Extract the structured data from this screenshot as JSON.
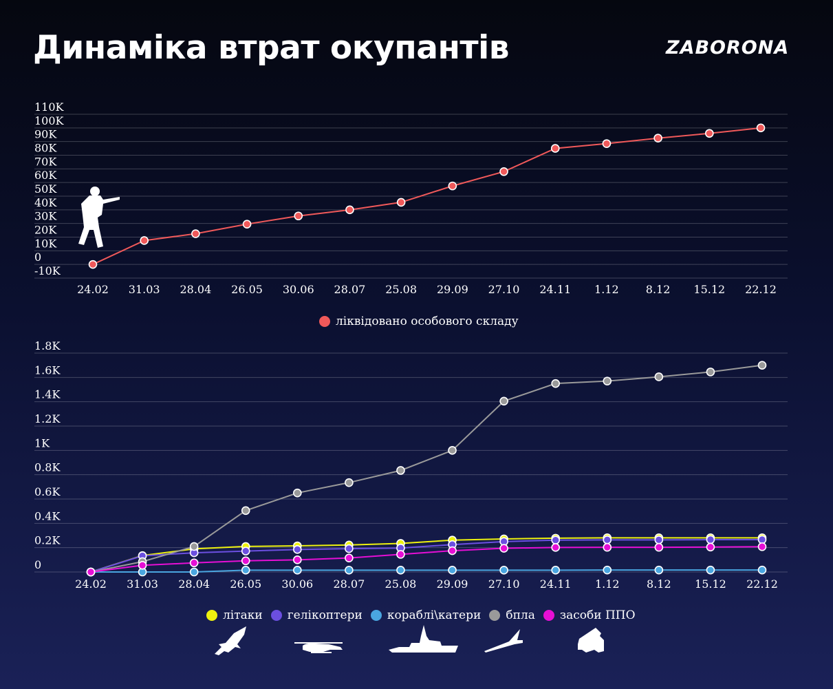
{
  "header": {
    "title": "Динаміка втрат окупантів",
    "brand": "ZABORONA"
  },
  "chart_data": [
    {
      "type": "line",
      "categories": [
        "24.02",
        "31.03",
        "28.04",
        "26.05",
        "30.06",
        "28.07",
        "25.08",
        "29.09",
        "27.10",
        "24.11",
        "1.12",
        "8.12",
        "15.12",
        "22.12"
      ],
      "y_ticks": [
        "-10K",
        "0",
        "10K",
        "20K",
        "30K",
        "40K",
        "50K",
        "60K",
        "70K",
        "80K",
        "90K",
        "100K",
        "110K"
      ],
      "ylim": [
        -10000,
        110000
      ],
      "grid": true,
      "legend_position": "bottom-center",
      "series": [
        {
          "name": "ліквідовано особового складу",
          "color": "#f0595a",
          "values": [
            0,
            17500,
            22500,
            29500,
            35500,
            40000,
            45500,
            57500,
            68000,
            85000,
            88500,
            92500,
            96000,
            100000
          ]
        }
      ],
      "icons": [
        "soldier-icon"
      ]
    },
    {
      "type": "line",
      "categories": [
        "24.02",
        "31.03",
        "28.04",
        "26.05",
        "30.06",
        "28.07",
        "25.08",
        "29.09",
        "27.10",
        "24.11",
        "1.12",
        "8.12",
        "15.12",
        "22.12"
      ],
      "y_ticks": [
        "0",
        "0.2K",
        "0.4K",
        "0.6K",
        "0.8K",
        "1K",
        "1.2K",
        "1.4K",
        "1.6K",
        "1.8K"
      ],
      "ylim": [
        0,
        1800
      ],
      "grid": true,
      "legend_position": "bottom-center",
      "series": [
        {
          "name": "літаки",
          "color": "#eef20f",
          "values": [
            0,
            135,
            190,
            210,
            215,
            222,
            235,
            262,
            272,
            278,
            281,
            281,
            281,
            281
          ]
        },
        {
          "name": "гелікоптери",
          "color": "#6b4fe0",
          "values": [
            0,
            133,
            158,
            172,
            185,
            192,
            197,
            225,
            250,
            262,
            264,
            264,
            266,
            266
          ]
        },
        {
          "name": "кораблі\\катери",
          "color": "#4aa6e0",
          "values": [
            0,
            0,
            0,
            15,
            15,
            15,
            15,
            15,
            15,
            15,
            16,
            16,
            16,
            16
          ]
        },
        {
          "name": "бпла",
          "color": "#9a9a9a",
          "values": [
            0,
            85,
            210,
            505,
            650,
            735,
            835,
            1000,
            1405,
            1550,
            1570,
            1605,
            1645,
            1700
          ]
        },
        {
          "name": "засоби ППО",
          "color": "#e60fd5",
          "values": [
            0,
            55,
            75,
            92,
            100,
            115,
            145,
            175,
            195,
            202,
            203,
            203,
            205,
            208
          ]
        }
      ],
      "icons": [
        "airplane-icon",
        "helicopter-icon",
        "warship-icon",
        "drone-icon",
        "missile-launcher-icon"
      ]
    }
  ]
}
